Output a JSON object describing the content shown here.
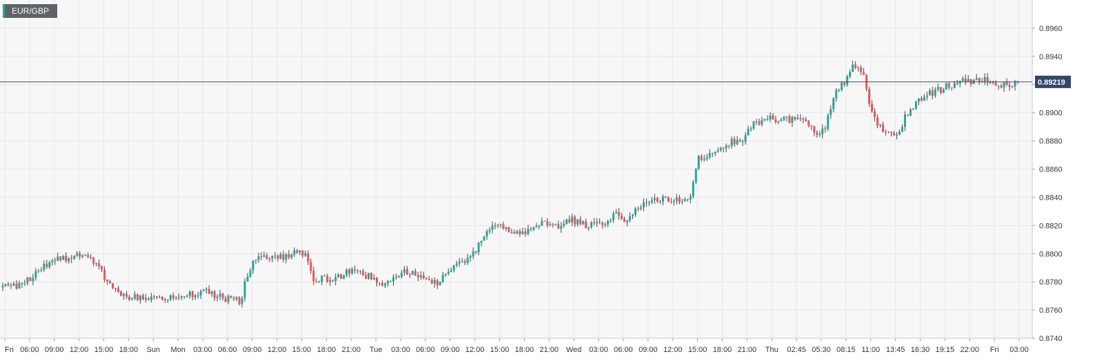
{
  "symbol": "EUR/GBP",
  "colors": {
    "up": "#26a69a",
    "down": "#ef5350",
    "wick": "#444444",
    "price_line": "#33476b",
    "grid": "#e6e6ea",
    "bg": "#f7f7f8"
  },
  "chart_data": {
    "type": "candlestick",
    "symbol": "EUR/GBP",
    "current_price": 0.89219,
    "current_price_label": "0.89219",
    "ylim": [
      0.874,
      0.898
    ],
    "y_ticks": [
      "0.8740",
      "0.8760",
      "0.8780",
      "0.8800",
      "0.8820",
      "0.8840",
      "0.8860",
      "0.8880",
      "0.8900",
      "0.8920",
      "0.8940",
      "0.8960"
    ],
    "x_labels": [
      "Fri",
      "06:00",
      "09:00",
      "12:00",
      "15:00",
      "18:00",
      "Sun",
      "Mon",
      "03:00",
      "06:00",
      "09:00",
      "12:00",
      "15:00",
      "18:00",
      "21:00",
      "Tue",
      "03:00",
      "06:00",
      "09:00",
      "12:00",
      "15:00",
      "18:00",
      "21:00",
      "Wed",
      "03:00",
      "06:00",
      "09:00",
      "12:00",
      "15:00",
      "18:00",
      "21:00",
      "Thu",
      "02:45",
      "05:30",
      "08:15",
      "11:00",
      "13:45",
      "16:30",
      "19:15",
      "22:00",
      "Fri",
      "03:00"
    ],
    "price_path": [
      0.8776,
      0.8777,
      0.8779,
      0.8783,
      0.8788,
      0.8793,
      0.8798,
      0.8796,
      0.88,
      0.8799,
      0.8794,
      0.8785,
      0.8777,
      0.8771,
      0.8769,
      0.8769,
      0.877,
      0.8771,
      0.8769,
      0.8769,
      0.877,
      0.8772,
      0.8773,
      0.8771,
      0.8769,
      0.8767,
      0.8767,
      0.879,
      0.8798,
      0.8797,
      0.8798,
      0.8798,
      0.88,
      0.88,
      0.8783,
      0.8782,
      0.8783,
      0.8785,
      0.8787,
      0.8786,
      0.8784,
      0.878,
      0.878,
      0.8782,
      0.8787,
      0.8787,
      0.8782,
      0.8778,
      0.8782,
      0.8788,
      0.8793,
      0.8796,
      0.8805,
      0.8814,
      0.8822,
      0.8818,
      0.8813,
      0.8816,
      0.8819,
      0.8821,
      0.8822,
      0.8819,
      0.8825,
      0.8822,
      0.882,
      0.882,
      0.8823,
      0.8827,
      0.8824,
      0.883,
      0.8836,
      0.8838,
      0.8838,
      0.8839,
      0.8838,
      0.8836,
      0.8868,
      0.887,
      0.8874,
      0.8878,
      0.888,
      0.8882,
      0.8892,
      0.8894,
      0.8897,
      0.8895,
      0.8895,
      0.8896,
      0.8893,
      0.8884,
      0.889,
      0.8915,
      0.892,
      0.8935,
      0.893,
      0.89,
      0.889,
      0.8883,
      0.8888,
      0.89,
      0.8908,
      0.8913,
      0.8915,
      0.8918,
      0.892,
      0.8922,
      0.8923,
      0.8924,
      0.8922,
      0.8919,
      0.8921,
      0.8922
    ]
  }
}
